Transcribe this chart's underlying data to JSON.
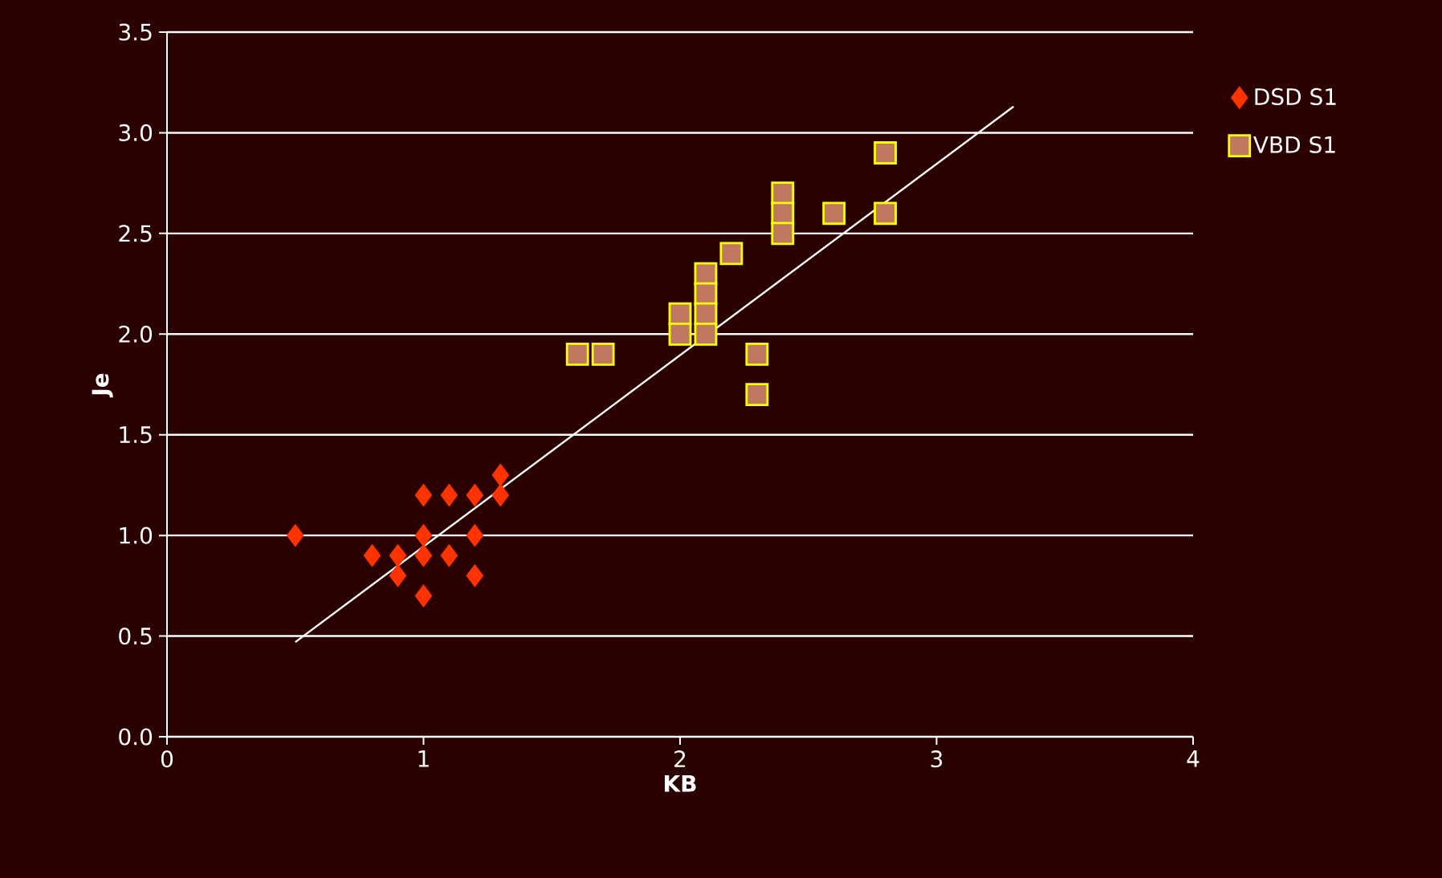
{
  "chart_data": {
    "type": "scatter",
    "xlabel": "KB",
    "ylabel": "Je",
    "xlim": [
      0,
      4
    ],
    "xticks": [
      0,
      1,
      2,
      3,
      4
    ],
    "ylim": [
      0,
      3.5
    ],
    "yticks": [
      {
        "value": 0,
        "label": "0.0"
      },
      {
        "value": 0.5,
        "label": "0.5"
      },
      {
        "value": 1,
        "label": "1.0"
      },
      {
        "value": 1.5,
        "label": "1.5"
      },
      {
        "value": 2,
        "label": "2.0"
      },
      {
        "value": 2.5,
        "label": "2.5"
      },
      {
        "value": 3,
        "label": "3.0"
      },
      {
        "value": 3.5,
        "label": "3.5"
      }
    ],
    "grid": "y",
    "legend": "right",
    "series": [
      {
        "name": "DSD S1",
        "color": "#ff3300",
        "marker": "diamond",
        "x": [
          0.5,
          0.8,
          0.9,
          0.9,
          1.0,
          1.0,
          1.0,
          1.0,
          1.1,
          1.1,
          1.2,
          1.2,
          1.2,
          1.3,
          1.3
        ],
        "values": [
          1.0,
          0.9,
          0.9,
          0.8,
          1.2,
          1.0,
          0.9,
          0.7,
          1.2,
          0.9,
          1.2,
          1.0,
          0.8,
          1.3,
          1.2
        ]
      },
      {
        "name": "VBD S1",
        "color": "#c07860",
        "marker": "square",
        "x": [
          1.6,
          1.7,
          2.0,
          2.0,
          2.1,
          2.1,
          2.1,
          2.1,
          2.2,
          2.3,
          2.3,
          2.4,
          2.4,
          2.4,
          2.6,
          2.8,
          2.8
        ],
        "values": [
          1.9,
          1.9,
          2.1,
          2.0,
          2.3,
          2.2,
          2.1,
          2.0,
          2.4,
          1.9,
          1.7,
          2.7,
          2.6,
          2.5,
          2.6,
          2.9,
          2.6
        ]
      },
      {
        "type": "line",
        "color": "#ffffff",
        "marker": "none",
        "x": [
          0.5,
          3.3
        ],
        "values": [
          0.47,
          3.13
        ]
      }
    ]
  }
}
